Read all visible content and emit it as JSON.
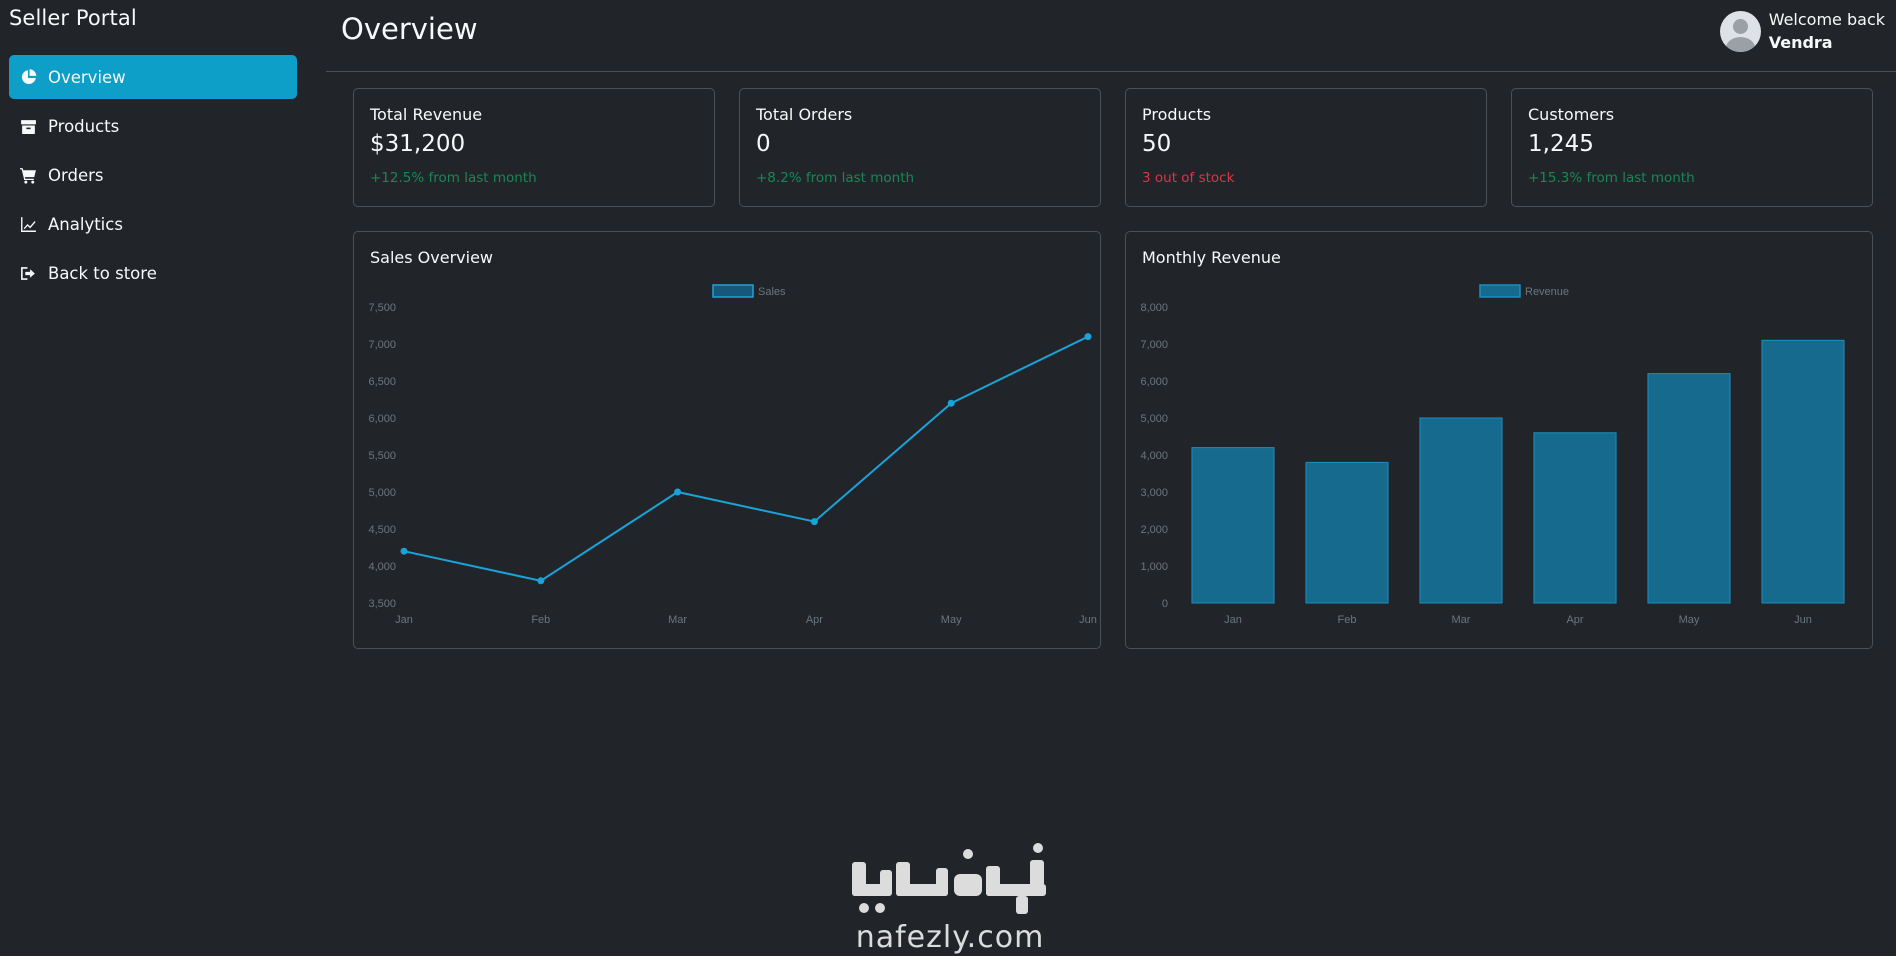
{
  "sidebar": {
    "brand": "Seller Portal",
    "items": [
      {
        "label": "Overview",
        "icon": "pie-chart-icon",
        "active": true
      },
      {
        "label": "Products",
        "icon": "box-icon",
        "active": false
      },
      {
        "label": "Orders",
        "icon": "cart-icon",
        "active": false
      },
      {
        "label": "Analytics",
        "icon": "line-chart-icon",
        "active": false
      },
      {
        "label": "Back to store",
        "icon": "sign-out-icon",
        "active": false
      }
    ]
  },
  "header": {
    "title": "Overview",
    "welcome": "Welcome back",
    "username": "Vendra"
  },
  "stats": [
    {
      "label": "Total Revenue",
      "value": "$31,200",
      "sub": "+12.5% from last month",
      "tone": "positive"
    },
    {
      "label": "Total Orders",
      "value": "0",
      "sub": "+8.2% from last month",
      "tone": "positive"
    },
    {
      "label": "Products",
      "value": "50",
      "sub": "3 out of stock",
      "tone": "negative"
    },
    {
      "label": "Customers",
      "value": "1,245",
      "sub": "+15.3% from last month",
      "tone": "positive"
    }
  ],
  "colors": {
    "accent": "#0d9fc8",
    "line": "#1aa3d9",
    "bar_fill": "#156a8e",
    "bar_stroke": "#1a8fbf",
    "positive": "#198754",
    "negative": "#dc3545"
  },
  "chart_data": [
    {
      "type": "line",
      "title": "Sales Overview",
      "legend_position": "top",
      "categories": [
        "Jan",
        "Feb",
        "Mar",
        "Apr",
        "May",
        "Jun"
      ],
      "series": [
        {
          "name": "Sales",
          "values": [
            4200,
            3800,
            5000,
            4600,
            6200,
            7100
          ]
        }
      ],
      "ylim": [
        3500,
        7500
      ],
      "yticks": [
        "7,500",
        "7,000",
        "6,500",
        "6,000",
        "5,500",
        "5,000",
        "4,500",
        "4,000",
        "3,500"
      ],
      "grid": false
    },
    {
      "type": "bar",
      "title": "Monthly Revenue",
      "legend_position": "top",
      "categories": [
        "Jan",
        "Feb",
        "Mar",
        "Apr",
        "May",
        "Jun"
      ],
      "series": [
        {
          "name": "Revenue",
          "values": [
            4200,
            3800,
            5000,
            4600,
            6200,
            7100
          ]
        }
      ],
      "ylim": [
        0,
        8000
      ],
      "yticks": [
        "8,000",
        "7,000",
        "6,000",
        "5,000",
        "4,000",
        "3,000",
        "2,000",
        "1,000",
        "0"
      ],
      "grid": false
    }
  ],
  "watermark": {
    "arabic": "نفذلي",
    "domain": "nafezly.com"
  }
}
